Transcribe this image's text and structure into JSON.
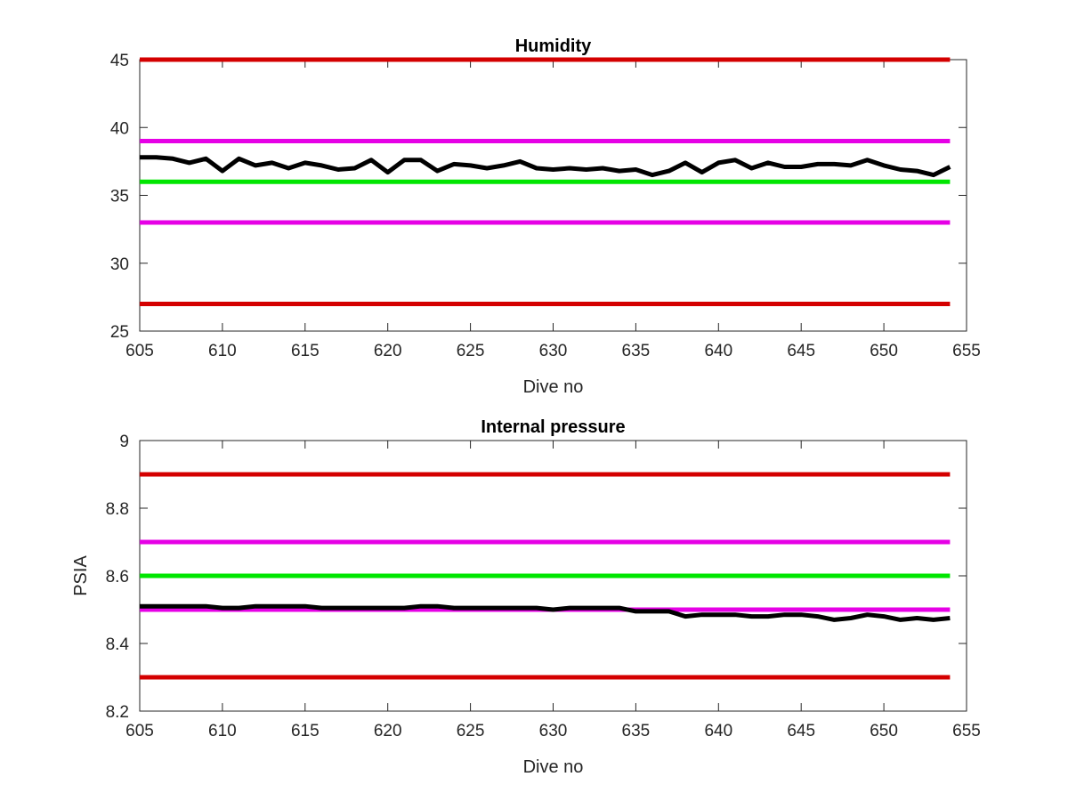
{
  "chart_data": [
    {
      "type": "line",
      "title": "Humidity",
      "xlabel": "Dive no",
      "ylabel": "",
      "xlim": [
        605,
        655
      ],
      "ylim": [
        25,
        45
      ],
      "xticks": [
        "605",
        "610",
        "615",
        "620",
        "625",
        "630",
        "635",
        "640",
        "645",
        "650",
        "655"
      ],
      "yticks": [
        "25",
        "30",
        "35",
        "40",
        "45"
      ],
      "hlines": [
        {
          "value": 45,
          "color": "#d40000"
        },
        {
          "value": 39,
          "color": "#e600e6"
        },
        {
          "value": 36,
          "color": "#00e600"
        },
        {
          "value": 33,
          "color": "#e600e6"
        },
        {
          "value": 27,
          "color": "#d40000"
        }
      ],
      "series": [
        {
          "color": "#000000",
          "x": [
            605,
            606,
            607,
            608,
            609,
            610,
            611,
            612,
            613,
            614,
            615,
            616,
            617,
            618,
            619,
            620,
            621,
            622,
            623,
            624,
            625,
            626,
            627,
            628,
            629,
            630,
            631,
            632,
            633,
            634,
            635,
            636,
            637,
            638,
            639,
            640,
            641,
            642,
            643,
            644,
            645,
            646,
            647,
            648,
            649,
            650,
            651,
            652,
            653,
            654
          ],
          "values": [
            37.8,
            37.8,
            37.7,
            37.4,
            37.7,
            36.8,
            37.7,
            37.2,
            37.4,
            37.0,
            37.4,
            37.2,
            36.9,
            37.0,
            37.6,
            36.7,
            37.6,
            37.6,
            36.8,
            37.3,
            37.2,
            37.0,
            37.2,
            37.5,
            37.0,
            36.9,
            37.0,
            36.9,
            37.0,
            36.8,
            36.9,
            36.5,
            36.8,
            37.4,
            36.7,
            37.4,
            37.6,
            37.0,
            37.4,
            37.1,
            37.1,
            37.3,
            37.3,
            37.2,
            37.6,
            37.2,
            36.9,
            36.8,
            36.5,
            37.1
          ]
        }
      ]
    },
    {
      "type": "line",
      "title": "Internal pressure",
      "xlabel": "Dive no",
      "ylabel": "PSIA",
      "xlim": [
        605,
        655
      ],
      "ylim": [
        8.2,
        9.0
      ],
      "xticks": [
        "605",
        "610",
        "615",
        "620",
        "625",
        "630",
        "635",
        "640",
        "645",
        "650",
        "655"
      ],
      "yticks": [
        "8.2",
        "8.4",
        "8.6",
        "8.8",
        "9"
      ],
      "hlines": [
        {
          "value": 8.9,
          "color": "#d40000"
        },
        {
          "value": 8.7,
          "color": "#e600e6"
        },
        {
          "value": 8.6,
          "color": "#00e600"
        },
        {
          "value": 8.5,
          "color": "#e600e6"
        },
        {
          "value": 8.3,
          "color": "#d40000"
        }
      ],
      "series": [
        {
          "color": "#000000",
          "x": [
            605,
            606,
            607,
            608,
            609,
            610,
            611,
            612,
            613,
            614,
            615,
            616,
            617,
            618,
            619,
            620,
            621,
            622,
            623,
            624,
            625,
            626,
            627,
            628,
            629,
            630,
            631,
            632,
            633,
            634,
            635,
            636,
            637,
            638,
            639,
            640,
            641,
            642,
            643,
            644,
            645,
            646,
            647,
            648,
            649,
            650,
            651,
            652,
            653,
            654
          ],
          "values": [
            8.51,
            8.51,
            8.51,
            8.51,
            8.51,
            8.505,
            8.505,
            8.51,
            8.51,
            8.51,
            8.51,
            8.505,
            8.505,
            8.505,
            8.505,
            8.505,
            8.505,
            8.51,
            8.51,
            8.505,
            8.505,
            8.505,
            8.505,
            8.505,
            8.505,
            8.5,
            8.505,
            8.505,
            8.505,
            8.505,
            8.495,
            8.495,
            8.495,
            8.48,
            8.485,
            8.485,
            8.485,
            8.48,
            8.48,
            8.485,
            8.485,
            8.48,
            8.47,
            8.475,
            8.485,
            8.48,
            8.47,
            8.475,
            8.47,
            8.475
          ]
        }
      ]
    }
  ]
}
